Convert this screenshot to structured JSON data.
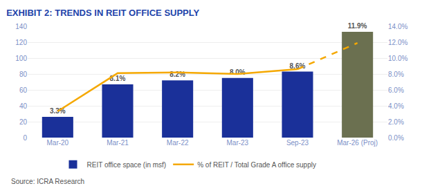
{
  "chart_data": {
    "type": "bar",
    "title": "EXHIBIT 2: TRENDS IN REIT OFFICE SUPPLY",
    "categories": [
      "Mar-20",
      "Mar-21",
      "Mar-22",
      "Mar-23",
      "Sep-23",
      "Mar-26 (Proj)"
    ],
    "series": [
      {
        "name": "REIT office space (in msf)",
        "type": "bar",
        "colors": [
          "#1a3099",
          "#1a3099",
          "#1a3099",
          "#1a3099",
          "#1a3099",
          "#6b7050"
        ],
        "values": [
          26,
          67,
          72,
          75,
          83,
          133
        ]
      },
      {
        "name": "% of REIT / Total Grade A office supply",
        "type": "line",
        "axis": "y2",
        "color": "#f5a800",
        "line_style": "solid",
        "data_labels": true,
        "values": [
          3.3,
          8.1,
          8.2,
          8.0,
          8.6,
          null
        ],
        "value_labels": [
          "3.3%",
          "8.1%",
          "8.2%",
          "8.0%",
          "8.6%",
          null
        ]
      },
      {
        "type": "line",
        "axis": "y2",
        "color": "#f5a800",
        "line_style": "dashed",
        "data_labels": true,
        "values": [
          null,
          null,
          null,
          null,
          8.6,
          11.9
        ],
        "value_labels": [
          null,
          null,
          null,
          null,
          null,
          "11.9%"
        ]
      }
    ],
    "ylim": [
      0,
      140
    ],
    "yticks": [
      0,
      20,
      40,
      60,
      80,
      100,
      120,
      140
    ],
    "y2lim": [
      0,
      14
    ],
    "y2ticks": [
      {
        "value": 0,
        "label": "0.0%"
      },
      {
        "value": 2,
        "label": "2.0%"
      },
      {
        "value": 4,
        "label": "4.0%"
      },
      {
        "value": 6,
        "label": "6.0%"
      },
      {
        "value": 8,
        "label": "8.0%"
      },
      {
        "value": 10,
        "label": "10.0%"
      },
      {
        "value": 12,
        "label": "12.0%"
      },
      {
        "value": 14,
        "label": "14.0%"
      }
    ],
    "grid": true,
    "legend": "bottom",
    "annotations": [
      "Source: ICRA Research"
    ]
  }
}
